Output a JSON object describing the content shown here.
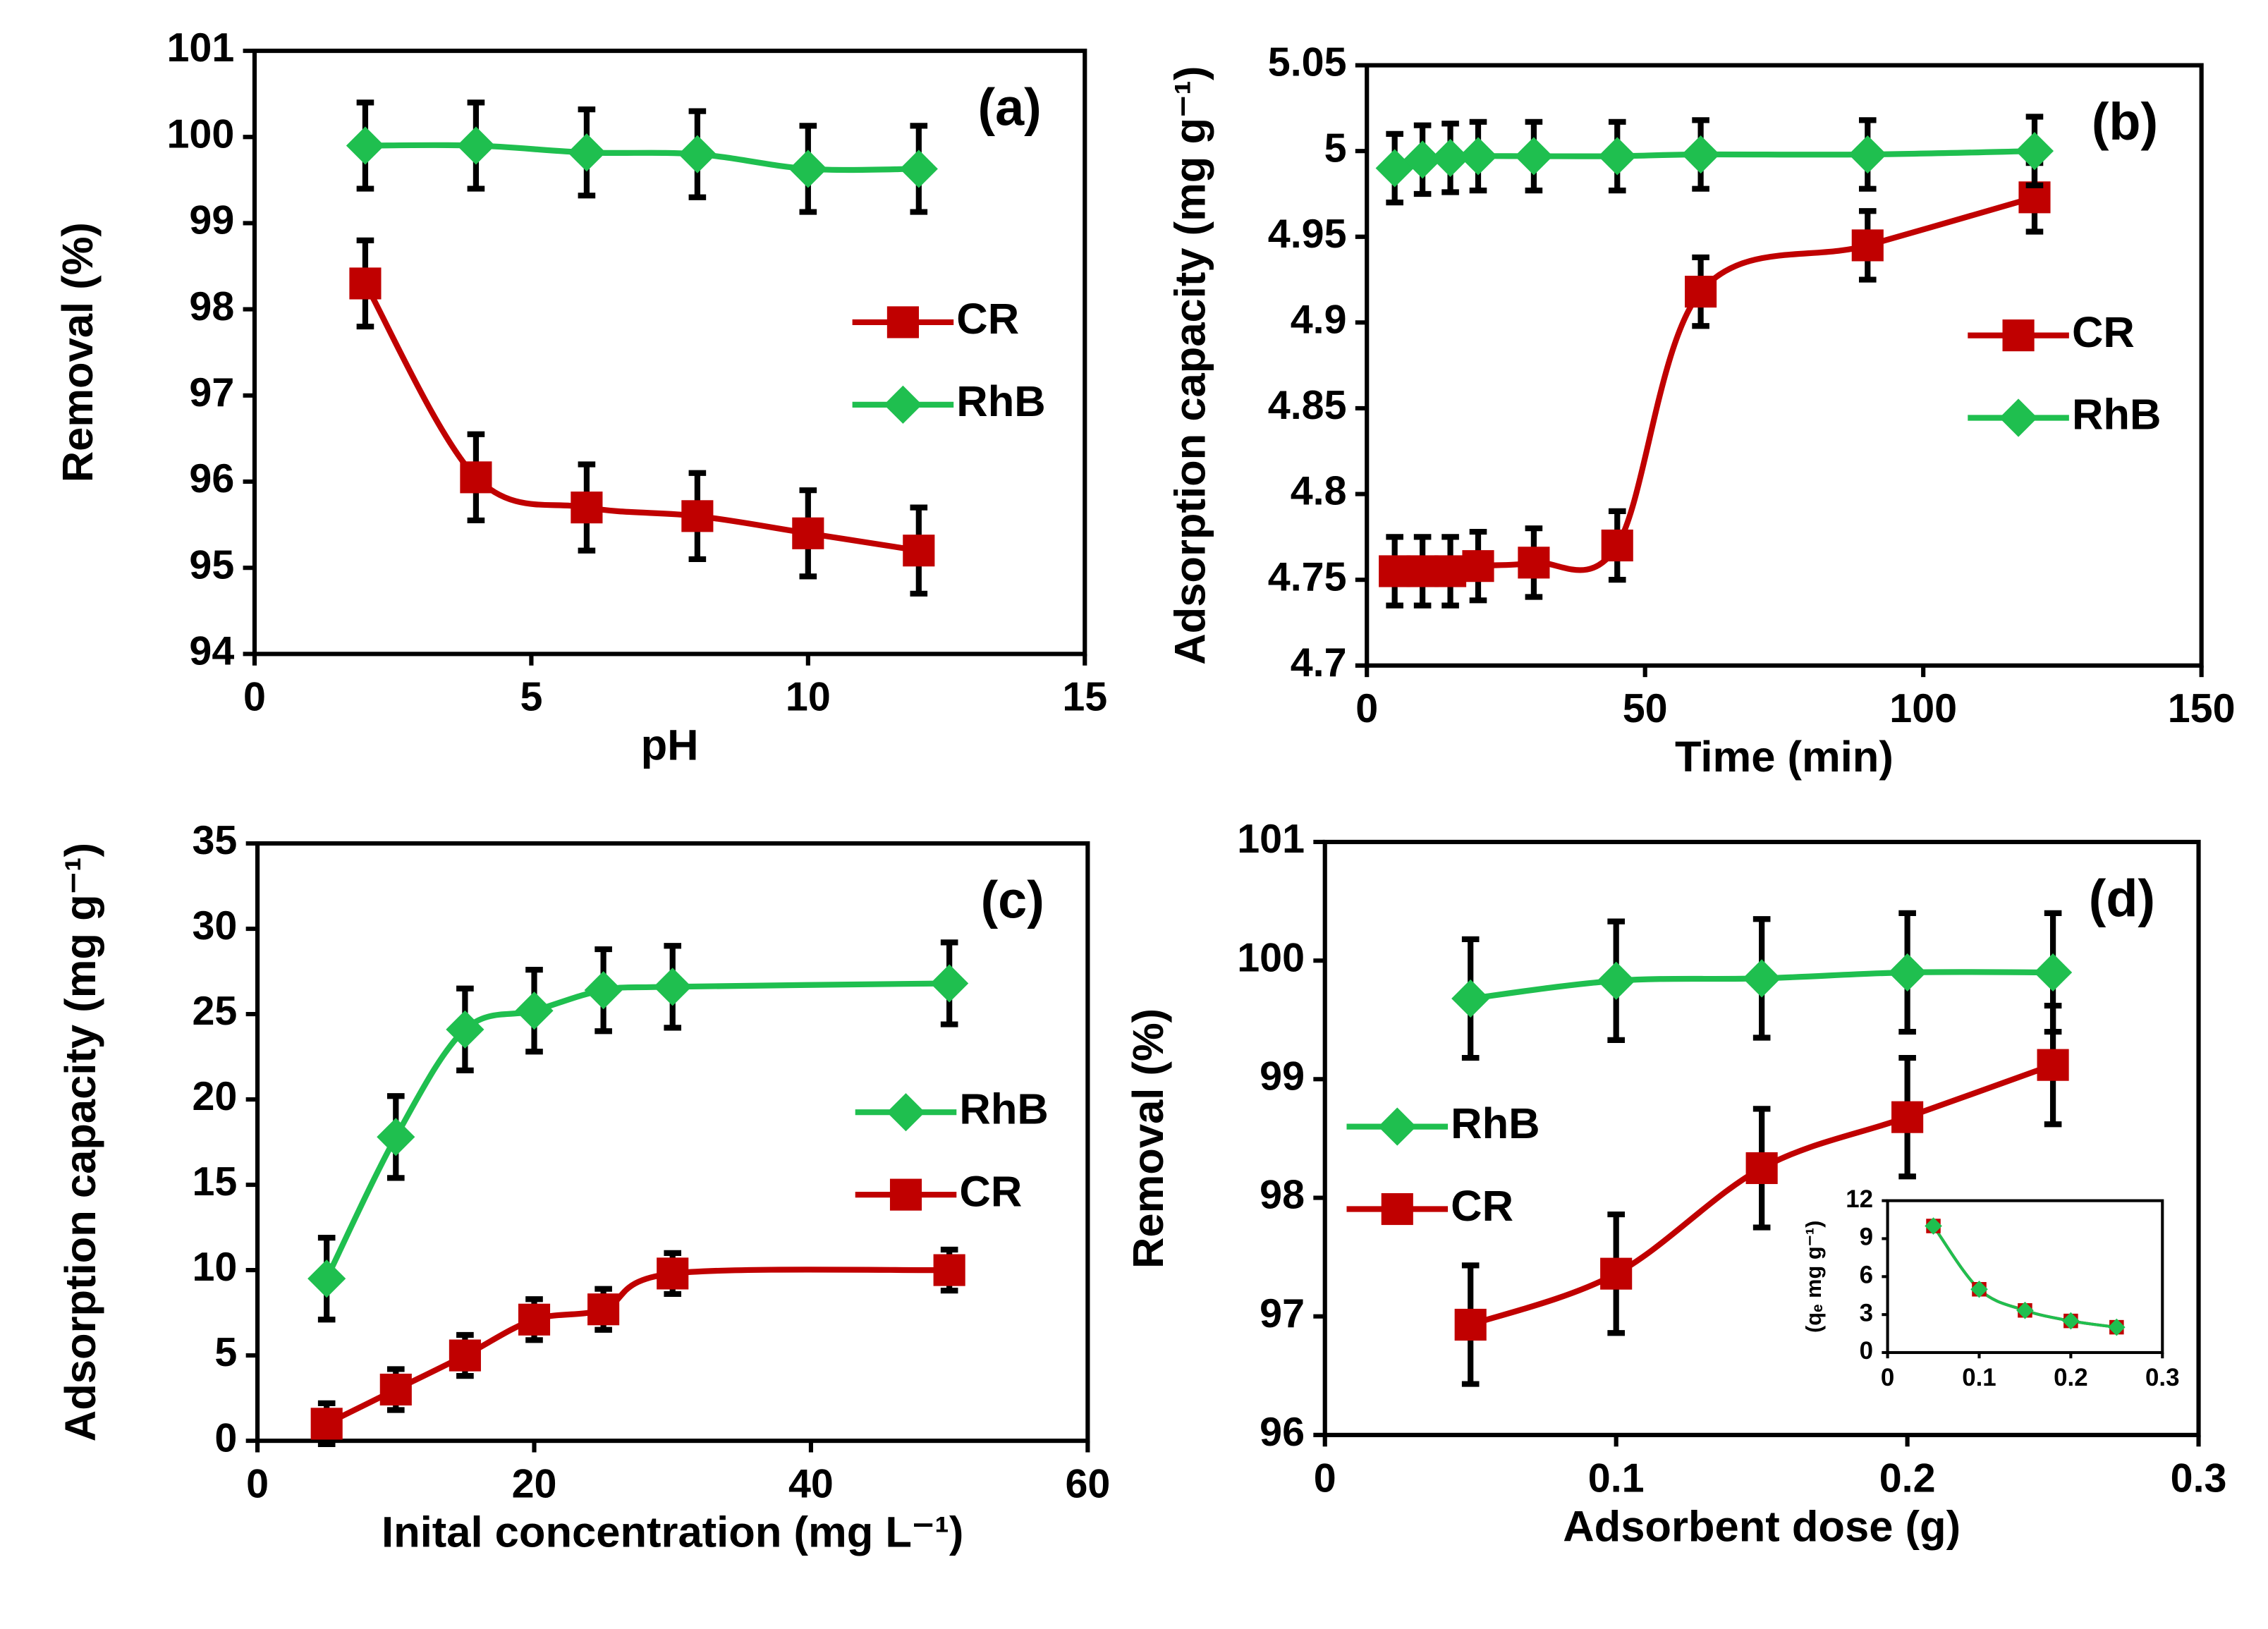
{
  "chart_data": [
    {
      "type": "line",
      "title": "(a)",
      "xlabel": "pH",
      "ylabel": "Removal (%)",
      "legend": "center-right",
      "x": [
        2,
        4,
        6,
        8,
        10,
        12
      ],
      "xlim": [
        0,
        15
      ],
      "xticks": [
        0,
        5,
        10,
        15
      ],
      "ylim": [
        94,
        101
      ],
      "yticks": [
        94,
        95,
        96,
        97,
        98,
        99,
        100,
        101
      ],
      "series": [
        {
          "name": "CR",
          "color": "#c00000",
          "marker": "square",
          "values": [
            98.3,
            96.05,
            95.7,
            95.6,
            95.4,
            95.2
          ],
          "errors": [
            0.5,
            0.5,
            0.5,
            0.5,
            0.5,
            0.5
          ]
        },
        {
          "name": "RhB",
          "color": "#1fbf4f",
          "marker": "diamond",
          "values": [
            99.9,
            99.9,
            99.82,
            99.8,
            99.63,
            99.63
          ],
          "errors": [
            0.5,
            0.5,
            0.5,
            0.5,
            0.5,
            0.5
          ]
        }
      ]
    },
    {
      "type": "line",
      "title": "(b)",
      "xlabel": "Time (min)",
      "ylabel": "Adsorption capacity (mg g⁻¹)",
      "legend": "center-right",
      "x": [
        5,
        10,
        15,
        20,
        30,
        45,
        60,
        90,
        120
      ],
      "xlim": [
        0,
        150
      ],
      "xticks": [
        0,
        50,
        100,
        150
      ],
      "ylim": [
        4.7,
        5.05
      ],
      "yticks": [
        4.7,
        4.75,
        4.8,
        4.85,
        4.9,
        4.95,
        5,
        5.05
      ],
      "series": [
        {
          "name": "CR",
          "color": "#c00000",
          "marker": "square",
          "values": [
            4.755,
            4.755,
            4.755,
            4.758,
            4.76,
            4.77,
            4.918,
            4.945,
            4.973
          ],
          "errors": [
            0.02,
            0.02,
            0.02,
            0.02,
            0.02,
            0.02,
            0.02,
            0.02,
            0.02
          ]
        },
        {
          "name": "RhB",
          "color": "#1fbf4f",
          "marker": "diamond",
          "values": [
            4.99,
            4.995,
            4.996,
            4.997,
            4.997,
            4.997,
            4.998,
            4.998,
            5.0
          ],
          "errors": [
            0.02,
            0.02,
            0.02,
            0.02,
            0.02,
            0.02,
            0.02,
            0.02,
            0.02
          ]
        }
      ]
    },
    {
      "type": "line",
      "title": "(c)",
      "xlabel": "Inital concentration (mg L⁻¹)",
      "ylabel": "Adsorption capacity (mg g⁻¹)",
      "legend": "center-right",
      "x": [
        5,
        10,
        15,
        20,
        25,
        30,
        50
      ],
      "xlim": [
        0,
        60
      ],
      "xticks": [
        0,
        20,
        40,
        60
      ],
      "ylim": [
        0,
        35
      ],
      "yticks": [
        0,
        5,
        10,
        15,
        20,
        25,
        30,
        35
      ],
      "series": [
        {
          "name": "RhB",
          "color": "#1fbf4f",
          "marker": "diamond",
          "values": [
            9.5,
            17.8,
            24.1,
            25.2,
            26.4,
            26.6,
            26.8
          ],
          "errors": [
            2.4,
            2.4,
            2.4,
            2.4,
            2.4,
            2.4,
            2.4
          ]
        },
        {
          "name": "CR",
          "color": "#c00000",
          "marker": "square",
          "values": [
            1,
            3,
            5,
            7.1,
            7.7,
            9.8,
            10
          ],
          "errors": [
            1.2,
            1.2,
            1.2,
            1.2,
            1.2,
            1.2,
            1.2
          ]
        }
      ]
    },
    {
      "type": "line",
      "title": "(d)",
      "xlabel": "Adsorbent dose (g)",
      "ylabel": "Removal (%)",
      "legend": "center-left",
      "x": [
        0.05,
        0.1,
        0.15,
        0.2,
        0.25
      ],
      "xlim": [
        0,
        0.3
      ],
      "xticks": [
        0,
        0.1,
        0.2,
        0.3
      ],
      "ylim": [
        96,
        101
      ],
      "yticks": [
        96,
        97,
        98,
        99,
        100,
        101
      ],
      "series": [
        {
          "name": "RhB",
          "color": "#1fbf4f",
          "marker": "diamond",
          "values": [
            99.68,
            99.83,
            99.85,
            99.9,
            99.9
          ],
          "errors": [
            0.5,
            0.5,
            0.5,
            0.5,
            0.5
          ]
        },
        {
          "name": "CR",
          "color": "#c00000",
          "marker": "square",
          "values": [
            96.93,
            97.36,
            98.25,
            98.68,
            99.12
          ],
          "errors": [
            0.5,
            0.5,
            0.5,
            0.5,
            0.5
          ]
        }
      ],
      "inset": {
        "type": "line",
        "ylabel": "(qₑ mg g⁻¹)",
        "x": [
          0.05,
          0.1,
          0.15,
          0.2,
          0.25
        ],
        "xlim": [
          0,
          0.3
        ],
        "xticks": [
          0,
          0.1,
          0.2,
          0.3
        ],
        "ylim": [
          0,
          12
        ],
        "yticks": [
          0,
          3,
          6,
          9,
          12
        ],
        "series": [
          {
            "color": "#c00000",
            "marker": "square",
            "values": [
              10,
              5,
              3.33,
              2.5,
              2
            ]
          },
          {
            "color": "#1fbf4f",
            "marker": "diamond",
            "values": [
              10,
              5,
              3.33,
              2.5,
              2
            ]
          }
        ]
      }
    }
  ]
}
